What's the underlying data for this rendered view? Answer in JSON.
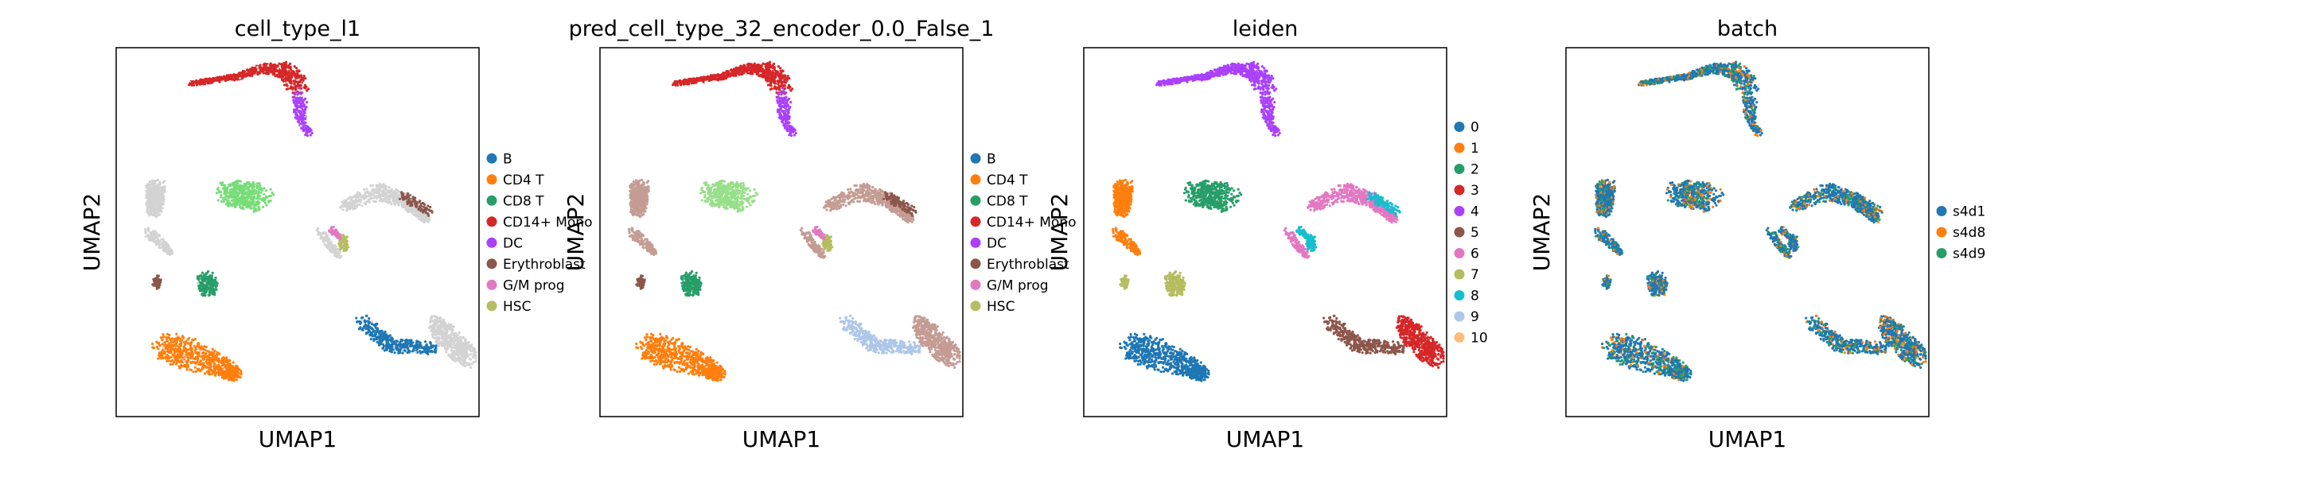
{
  "chart_data": [
    {
      "type": "scatter",
      "title": "cell_type_l1",
      "xlabel": "UMAP1",
      "ylabel": "UMAP2",
      "grid": false,
      "legend": "right",
      "legend_entries": [
        {
          "label": "B",
          "color": "#1f77b4"
        },
        {
          "label": "CD4 T",
          "color": "#ff7f0e"
        },
        {
          "label": "CD8 T",
          "color": "#279e68"
        },
        {
          "label": "CD14+ Mono",
          "color": "#d62728"
        },
        {
          "label": "DC",
          "color": "#aa40fc"
        },
        {
          "label": "Erythroblast",
          "color": "#8c564b"
        },
        {
          "label": "G/M prog",
          "color": "#e377c2"
        },
        {
          "label": "HSC",
          "color": "#b5bd61"
        }
      ],
      "na_color": "#d3d3d3",
      "clusters": [
        {
          "color": "#d62728"
        },
        {
          "color": "#aa40fc"
        },
        {
          "color": "#d3d3d3"
        },
        {
          "color": "#d3d3d3"
        },
        {
          "color": "#8c564b"
        },
        {
          "color": "#279e68"
        },
        {
          "color": "#77dd77"
        },
        {
          "color": "#d3d3d3"
        },
        {
          "color": "#d3d3d3"
        },
        {
          "color": "#8c564b"
        },
        {
          "color": "#b5bd61"
        },
        {
          "color": "#e377c2"
        },
        {
          "color": "#d3d3d3"
        },
        {
          "color": "#1f77b4"
        },
        {
          "color": "#ff7f0e"
        }
      ]
    },
    {
      "type": "scatter",
      "title": "pred_cell_type_32_encoder_0.0_False_1",
      "xlabel": "UMAP1",
      "ylabel": "UMAP2",
      "grid": false,
      "legend": "right",
      "legend_entries": [
        {
          "label": "B",
          "color": "#1f77b4"
        },
        {
          "label": "CD4 T",
          "color": "#ff7f0e"
        },
        {
          "label": "CD8 T",
          "color": "#279e68"
        },
        {
          "label": "CD14+ Mono",
          "color": "#d62728"
        },
        {
          "label": "DC",
          "color": "#aa40fc"
        },
        {
          "label": "Erythroblast",
          "color": "#8c564b"
        },
        {
          "label": "G/M prog",
          "color": "#e377c2"
        },
        {
          "label": "HSC",
          "color": "#b5bd61"
        }
      ],
      "clusters": [
        {
          "color": "#d62728"
        },
        {
          "color": "#aa40fc"
        },
        {
          "color": "#c49c94"
        },
        {
          "color": "#c49c94"
        },
        {
          "color": "#8c564b"
        },
        {
          "color": "#279e68"
        },
        {
          "color": "#98df8a"
        },
        {
          "color": "#c49c94"
        },
        {
          "color": "#c49c94"
        },
        {
          "color": "#8c564b"
        },
        {
          "color": "#b5bd61"
        },
        {
          "color": "#e377c2"
        },
        {
          "color": "#c49c94"
        },
        {
          "color": "#aec7e8"
        },
        {
          "color": "#ff7f0e"
        }
      ]
    },
    {
      "type": "scatter",
      "title": "leiden",
      "xlabel": "UMAP1",
      "ylabel": "UMAP2",
      "grid": false,
      "legend": "right",
      "legend_entries": [
        {
          "label": "0",
          "color": "#1f77b4"
        },
        {
          "label": "1",
          "color": "#ff7f0e"
        },
        {
          "label": "2",
          "color": "#279e68"
        },
        {
          "label": "3",
          "color": "#d62728"
        },
        {
          "label": "4",
          "color": "#aa40fc"
        },
        {
          "label": "5",
          "color": "#8c564b"
        },
        {
          "label": "6",
          "color": "#e377c2"
        },
        {
          "label": "7",
          "color": "#b5bd61"
        },
        {
          "label": "8",
          "color": "#17becf"
        },
        {
          "label": "9",
          "color": "#aec7e8"
        },
        {
          "label": "10",
          "color": "#ffbb78"
        }
      ],
      "clusters": [
        {
          "color": "#aa40fc"
        },
        {
          "color": "#aa40fc"
        },
        {
          "color": "#ff7f0e"
        },
        {
          "color": "#ff7f0e"
        },
        {
          "color": "#b5bd61"
        },
        {
          "color": "#b5bd61"
        },
        {
          "color": "#279e68"
        },
        {
          "color": "#e377c2"
        },
        {
          "color": "#e377c2"
        },
        {
          "color": "#17becf"
        },
        {
          "color": "#17becf"
        },
        {
          "color": "#17becf"
        },
        {
          "color": "#d62728"
        },
        {
          "color": "#8c564b"
        },
        {
          "color": "#1f77b4"
        }
      ]
    },
    {
      "type": "scatter",
      "title": "batch",
      "xlabel": "UMAP1",
      "ylabel": "UMAP2",
      "grid": false,
      "legend": "right",
      "legend_entries": [
        {
          "label": "s4d1",
          "color": "#1f77b4"
        },
        {
          "label": "s4d8",
          "color": "#ff7f0e"
        },
        {
          "label": "s4d9",
          "color": "#279e68"
        }
      ],
      "mixed": true,
      "mix_colors": [
        "#1f77b4",
        "#1f77b4",
        "#1f77b4",
        "#1f77b4",
        "#ff7f0e",
        "#279e68"
      ]
    }
  ]
}
